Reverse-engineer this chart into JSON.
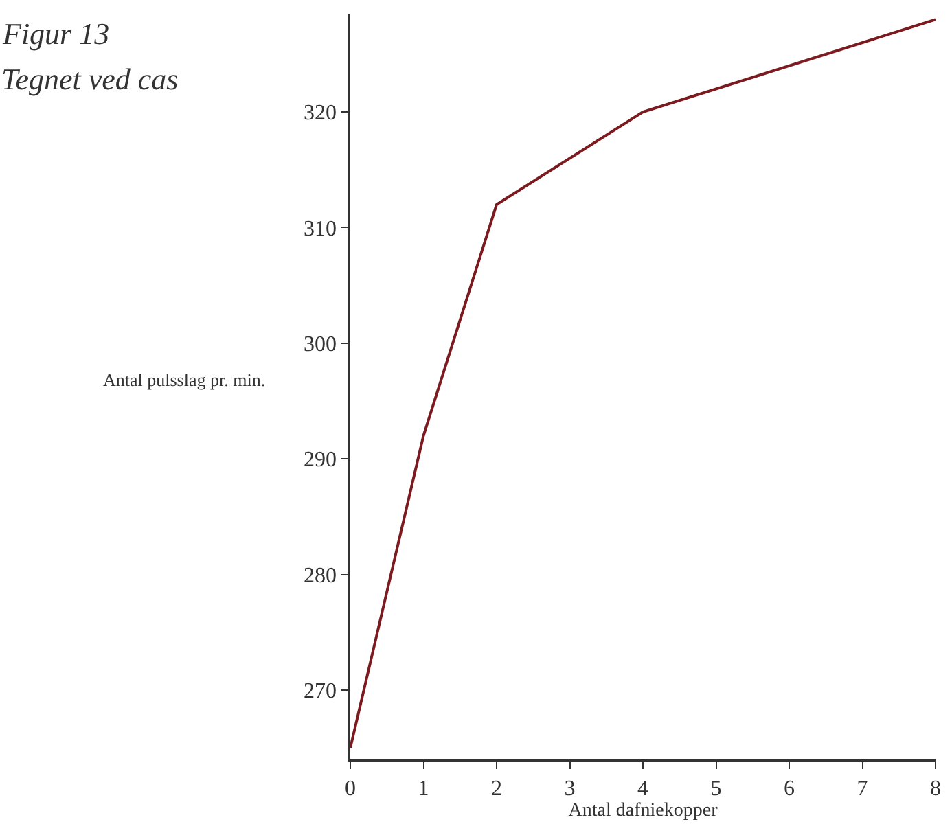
{
  "chart_data": {
    "type": "line",
    "xlabel": "Antal dafniekopper",
    "ylabel": "Antal pulsslag pr. min.",
    "annotations": [
      "Figur 13",
      "Tegnet ved cas"
    ],
    "x": [
      0,
      1,
      2,
      4,
      8
    ],
    "series": [
      {
        "color": "#7b1a1f",
        "values": [
          265,
          292,
          312,
          320,
          328
        ]
      }
    ],
    "xlim": [
      0,
      8
    ],
    "xticks": [
      0,
      1,
      2,
      3,
      4,
      5,
      6,
      7,
      8
    ],
    "ylim": [
      264,
      328.5
    ],
    "yticks": [
      270,
      280,
      290,
      300,
      310,
      320
    ],
    "legend": false,
    "marker": "none",
    "line_style": "solid"
  }
}
